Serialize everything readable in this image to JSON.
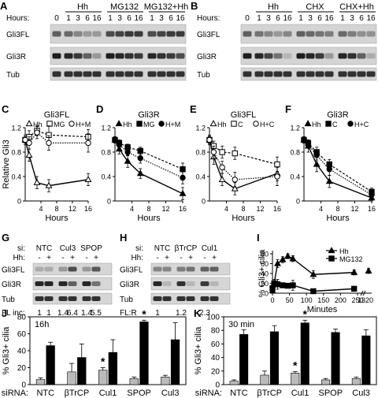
{
  "figure": {
    "panel_letters": [
      "A",
      "B",
      "C",
      "D",
      "E",
      "F",
      "G",
      "H",
      "I",
      "J",
      "K"
    ],
    "blot_A": {
      "hours_label": "Hours:",
      "groups": [
        "Hh",
        "MG132",
        "MG132+Hh"
      ],
      "lane_labels": [
        "0",
        "1",
        "3",
        "6",
        "16",
        "1",
        "3",
        "6",
        "16",
        "1",
        "3",
        "6",
        "16"
      ],
      "rows": [
        "Gli3FL",
        "Gli3R",
        "Tub"
      ]
    },
    "blot_B": {
      "hours_label": "Hours:",
      "groups": [
        "Hh",
        "CHX",
        "CHX+Hh"
      ],
      "lane_labels": [
        "0",
        "1",
        "3",
        "6",
        "16",
        "1",
        "3",
        "6",
        "16",
        "1",
        "3",
        "6",
        "16"
      ],
      "rows": [
        "Gli3FL",
        "Gli3R",
        "Tub"
      ]
    },
    "blot_G": {
      "si_label": "si:",
      "hh_label": "Hh:",
      "groups": [
        "NTC",
        "Cul3",
        "SPOP"
      ],
      "hh_marks": [
        "-",
        "+",
        "-",
        "+",
        "-",
        "+"
      ],
      "rows": [
        "Gli3FL",
        "Gli3R",
        "Tub"
      ],
      "footer_label": "FL inc:",
      "footer_values": [
        "1",
        "1",
        "1.4",
        "6.4",
        "1.4",
        "5.5"
      ]
    },
    "blot_H": {
      "si_label": "si:",
      "hh_label": "Hh:",
      "groups": [
        "NTC",
        "βTrCP",
        "Cul1"
      ],
      "hh_marks": [
        "-",
        "+",
        "-",
        "+",
        "-",
        "+"
      ],
      "rows": [
        "Gli3FL",
        "Gli3R",
        "Tub"
      ],
      "footer_label": "FL:R",
      "footer_values": [
        "1",
        "",
        "1.2",
        "",
        "2.3",
        ""
      ]
    }
  },
  "chart_data": [
    {
      "panel": "C",
      "type": "line",
      "title": "Gli3FL",
      "xlabel": "Hours",
      "ylabel": "Relative Gli3",
      "xlim": [
        0,
        16
      ],
      "ylim": [
        0,
        1.2
      ],
      "xticks": [
        "4",
        "8",
        "12",
        "16"
      ],
      "yticks": [
        "0",
        "0.4",
        "0.8",
        "1.2"
      ],
      "legend": [
        "Hh",
        "MG",
        "H+M"
      ],
      "x": [
        0,
        1,
        3,
        6,
        16
      ],
      "series": [
        {
          "name": "Hh",
          "marker": "open-triangle",
          "values": [
            1.0,
            0.75,
            0.3,
            0.25,
            0.35
          ],
          "err": [
            0.08,
            0.1,
            0.1,
            0.1,
            0.1
          ]
        },
        {
          "name": "MG",
          "marker": "open-square",
          "values": [
            1.0,
            1.05,
            1.15,
            1.08,
            1.05
          ],
          "err": [
            0.05,
            0.1,
            0.08,
            0.15,
            0.12
          ]
        },
        {
          "name": "H+M",
          "marker": "open-circle",
          "values": [
            1.0,
            0.95,
            1.12,
            0.95,
            0.95
          ],
          "err": [
            0.05,
            0.1,
            0.1,
            0.12,
            0.15
          ]
        }
      ]
    },
    {
      "panel": "D",
      "type": "line",
      "title": "Gli3R",
      "xlabel": "Hours",
      "ylabel": "",
      "xlim": [
        0,
        16
      ],
      "ylim": [
        0,
        1.2
      ],
      "xticks": [
        "4",
        "8",
        "12",
        "16"
      ],
      "yticks": [
        "0",
        "0.4",
        "0.8",
        "1.2"
      ],
      "legend": [
        "Hh",
        "MG",
        "H+M"
      ],
      "x": [
        0,
        1,
        3,
        6,
        16
      ],
      "series": [
        {
          "name": "Hh",
          "marker": "filled-triangle",
          "values": [
            1.0,
            0.85,
            0.65,
            0.45,
            0.12
          ],
          "err": [
            0.05,
            0.08,
            0.1,
            0.08,
            0.1
          ]
        },
        {
          "name": "MG",
          "marker": "filled-square",
          "values": [
            1.0,
            0.95,
            0.88,
            0.82,
            0.52
          ],
          "err": [
            0.05,
            0.05,
            0.05,
            0.06,
            0.1
          ]
        },
        {
          "name": "H+M",
          "marker": "filled-circle",
          "values": [
            1.0,
            0.92,
            0.8,
            0.7,
            0.38
          ],
          "err": [
            0.05,
            0.06,
            0.06,
            0.08,
            0.1
          ]
        }
      ]
    },
    {
      "panel": "E",
      "type": "line",
      "title": "Gli3FL",
      "xlabel": "Hours",
      "ylabel": "",
      "xlim": [
        0,
        16
      ],
      "ylim": [
        0,
        1.2
      ],
      "xticks": [
        "4",
        "8",
        "12",
        "16"
      ],
      "yticks": [
        "0",
        "0.4",
        "0.8",
        "1.2"
      ],
      "legend": [
        "Hh",
        "C",
        "H+C"
      ],
      "x": [
        0,
        1,
        3,
        6,
        16
      ],
      "series": [
        {
          "name": "Hh",
          "marker": "open-triangle",
          "values": [
            1.0,
            0.72,
            0.35,
            0.2,
            0.45
          ],
          "err": [
            0.08,
            0.12,
            0.1,
            0.1,
            0.12
          ]
        },
        {
          "name": "C",
          "marker": "open-square",
          "values": [
            1.0,
            0.9,
            0.8,
            0.78,
            0.6
          ],
          "err": [
            0.05,
            0.08,
            0.1,
            0.1,
            0.12
          ]
        },
        {
          "name": "H+C",
          "marker": "open-circle",
          "values": [
            1.0,
            0.8,
            0.55,
            0.35,
            0.4
          ],
          "err": [
            0.06,
            0.1,
            0.1,
            0.12,
            0.15
          ]
        }
      ]
    },
    {
      "panel": "F",
      "type": "line",
      "title": "Gli3R",
      "xlabel": "Hours",
      "ylabel": "",
      "xlim": [
        0,
        16
      ],
      "ylim": [
        0,
        1.2
      ],
      "xticks": [
        "4",
        "8",
        "12",
        "16"
      ],
      "yticks": [
        "0",
        "0.4",
        "0.8",
        "1.2"
      ],
      "legend": [
        "Hh",
        "C",
        "H+C"
      ],
      "x": [
        0,
        1,
        3,
        6,
        16
      ],
      "series": [
        {
          "name": "Hh",
          "marker": "filled-triangle",
          "values": [
            1.0,
            0.9,
            0.6,
            0.32,
            0.05
          ],
          "err": [
            0.05,
            0.1,
            0.12,
            0.1,
            0.05
          ]
        },
        {
          "name": "C",
          "marker": "filled-square",
          "values": [
            1.0,
            0.95,
            0.8,
            0.6,
            0.15
          ],
          "err": [
            0.05,
            0.05,
            0.08,
            0.08,
            0.06
          ]
        },
        {
          "name": "H+C",
          "marker": "filled-circle",
          "values": [
            1.0,
            0.92,
            0.75,
            0.52,
            0.1
          ],
          "err": [
            0.05,
            0.06,
            0.08,
            0.1,
            0.05
          ]
        }
      ]
    },
    {
      "panel": "I",
      "type": "line",
      "title": "",
      "xlabel": "Minutes",
      "ylabel": "% Gli3+ cilia",
      "ylim": [
        0,
        80
      ],
      "xticks": [
        "0",
        "50",
        "100",
        "150",
        "200",
        "250",
        "1320"
      ],
      "yticks": [
        "0",
        "20",
        "40",
        "60",
        "80"
      ],
      "legend": [
        "Hh",
        "MG132"
      ],
      "axis_break": "between 250 and 1320",
      "series": [
        {
          "name": "Hh",
          "marker": "filled-triangle",
          "x": [
            0,
            5,
            15,
            30,
            45,
            60,
            120,
            240,
            1320
          ],
          "values": [
            5,
            20,
            60,
            68,
            75,
            70,
            38,
            42,
            45
          ],
          "err": [
            2,
            5,
            8,
            6,
            5,
            6,
            8,
            5,
            5
          ]
        },
        {
          "name": "MG132",
          "marker": "filled-square",
          "x": [
            0,
            5,
            15,
            30,
            45,
            60,
            120,
            240
          ],
          "values": [
            10,
            20,
            18,
            16,
            15,
            16,
            4,
            9
          ],
          "err": [
            2,
            8,
            10,
            5,
            4,
            10,
            2,
            3
          ]
        }
      ]
    },
    {
      "panel": "J",
      "type": "bar",
      "title": "16h",
      "xlabel": "siRNA:",
      "ylabel": "% Gli3+ cilia",
      "ylim": [
        0,
        80
      ],
      "yticks": [
        "0",
        "20",
        "40",
        "60",
        "80"
      ],
      "categories": [
        "NTC",
        "βTrCP",
        "Cul1",
        "SPOP",
        "Cul3"
      ],
      "series": [
        {
          "color": "#bbbbbb",
          "values": [
            6,
            15,
            17,
            7,
            9
          ],
          "err": [
            2,
            10,
            3,
            2,
            2
          ]
        },
        {
          "color": "#000000",
          "values": [
            46,
            32,
            38,
            74,
            53
          ],
          "err": [
            4,
            16,
            15,
            2,
            20
          ]
        }
      ],
      "significance": [
        {
          "category": "Cul1",
          "series": 0,
          "mark": "*"
        },
        {
          "category": "SPOP",
          "series": 1,
          "mark": "*"
        }
      ]
    },
    {
      "panel": "K",
      "type": "bar",
      "title": "30 min",
      "xlabel": "siRNA:",
      "ylabel": "% Gli3+ cilia",
      "ylim": [
        0,
        100
      ],
      "yticks": [
        "0",
        "20",
        "40",
        "60",
        "80",
        "100"
      ],
      "categories": [
        "NTC",
        "βTrCP",
        "Cul1",
        "SPOP",
        "Cul3"
      ],
      "series": [
        {
          "color": "#bbbbbb",
          "values": [
            5,
            14,
            17,
            7,
            9
          ],
          "err": [
            2,
            6,
            2,
            2,
            2
          ]
        },
        {
          "color": "#000000",
          "values": [
            74,
            78,
            91,
            77,
            72
          ],
          "err": [
            7,
            9,
            4,
            5,
            9
          ]
        }
      ],
      "significance": [
        {
          "category": "Cul1",
          "series": 0,
          "mark": "*"
        },
        {
          "category": "Cul1",
          "series": 1,
          "mark": "*"
        }
      ]
    }
  ]
}
